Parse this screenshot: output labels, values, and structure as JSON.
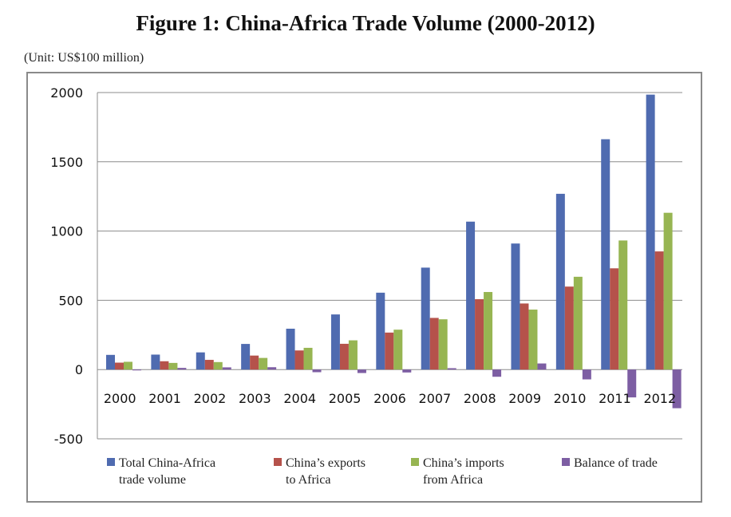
{
  "title": "Figure 1: China-Africa Trade Volume (2000-2012)",
  "unit": "(Unit: US$100 million)",
  "chart_data": {
    "type": "bar",
    "categories": [
      "2000",
      "2001",
      "2002",
      "2003",
      "2004",
      "2005",
      "2006",
      "2007",
      "2008",
      "2009",
      "2010",
      "2011",
      "2012"
    ],
    "ylim": [
      -500,
      2000
    ],
    "yticks": [
      "2000",
      "1500",
      "1000",
      "500",
      "0",
      "-500"
    ],
    "grid": true,
    "legend_position": "bottom",
    "series": [
      {
        "name": "Total China-Africa trade volume",
        "legend_lines": [
          "Total China-Africa",
          "trade volume"
        ],
        "color": "#4f6bb0",
        "values": [
          106,
          108,
          124,
          185,
          295,
          398,
          555,
          736,
          1068,
          910,
          1269,
          1663,
          1985
        ]
      },
      {
        "name": "China's exports to Africa",
        "legend_lines": [
          "China’s exports",
          "to Africa"
        ],
        "color": "#b5524b",
        "values": [
          50,
          60,
          70,
          101,
          138,
          186,
          267,
          373,
          508,
          477,
          599,
          731,
          853
        ]
      },
      {
        "name": "China's imports from Africa",
        "legend_lines": [
          "China’s imports",
          "from Africa"
        ],
        "color": "#97b552",
        "values": [
          56,
          48,
          54,
          84,
          157,
          211,
          288,
          363,
          560,
          433,
          670,
          932,
          1132
        ]
      },
      {
        "name": "Balance of trade",
        "legend_lines": [
          "Balance of trade"
        ],
        "color": "#7d5ea3",
        "values": [
          -6,
          12,
          16,
          17,
          -19,
          -25,
          -21,
          10,
          -52,
          44,
          -71,
          -201,
          -279
        ]
      }
    ]
  }
}
